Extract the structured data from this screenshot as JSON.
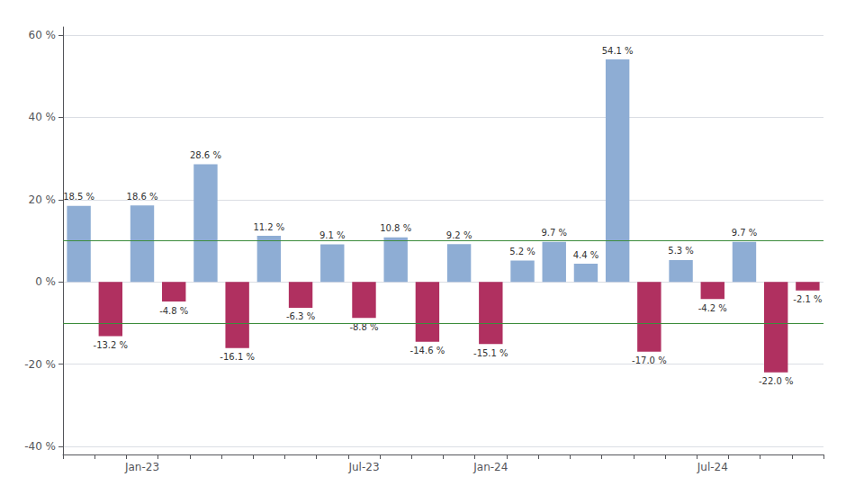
{
  "chart_data": {
    "type": "bar",
    "categories": [
      null,
      null,
      "Jan-23",
      null,
      null,
      null,
      null,
      null,
      null,
      "Jul-23",
      null,
      null,
      null,
      "Jan-24",
      null,
      null,
      null,
      null,
      null,
      null,
      "Jul-24",
      null,
      null,
      null
    ],
    "values": [
      18.5,
      -13.2,
      18.6,
      -4.8,
      28.6,
      -16.1,
      11.2,
      -6.3,
      9.1,
      -8.8,
      10.8,
      -14.6,
      9.2,
      -15.1,
      5.2,
      9.7,
      4.4,
      54.1,
      -17.0,
      5.3,
      -4.2,
      9.7,
      -22.0,
      -2.1
    ],
    "value_labels": [
      "18.5 %",
      "-13.2 %",
      "18.6 %",
      "-4.8 %",
      "28.6 %",
      "-16.1 %",
      "11.2 %",
      "-6.3 %",
      "9.1 %",
      "-8.8 %",
      "10.8 %",
      "-14.6 %",
      "9.2 %",
      "-15.1 %",
      "5.2 %",
      "9.7 %",
      "4.4 %",
      "54.1 %",
      "-17.0 %",
      "5.3 %",
      "-4.2 %",
      "9.7 %",
      "-22.0 %",
      "-2.1 %"
    ],
    "colors": [
      "#8eadd4",
      "#b03060",
      "#8eadd4",
      "#b03060",
      "#8eadd4",
      "#b03060",
      "#8eadd4",
      "#b03060",
      "#8eadd4",
      "#b03060",
      "#8eadd4",
      "#b03060",
      "#8eadd4",
      "#b03060",
      "#8eadd4",
      "#8eadd4",
      "#8eadd4",
      "#8eadd4",
      "#b03060",
      "#8eadd4",
      "#b03060",
      "#8eadd4",
      "#b03060",
      "#b03060"
    ],
    "data_labels": true,
    "ylim": [
      -42,
      62
    ],
    "yticks": [
      {
        "value": -40,
        "label": "-40 %"
      },
      {
        "value": -20,
        "label": "-20 %"
      },
      {
        "value": 0,
        "label": "0 %"
      },
      {
        "value": 20,
        "label": "20 %"
      },
      {
        "value": 40,
        "label": "40 %"
      },
      {
        "value": 60,
        "label": "60 %"
      }
    ],
    "grid": true,
    "reference_lines": [
      {
        "value": 10,
        "color": "#3c8c3c"
      },
      {
        "value": -10,
        "color": "#3c8c3c"
      }
    ]
  }
}
